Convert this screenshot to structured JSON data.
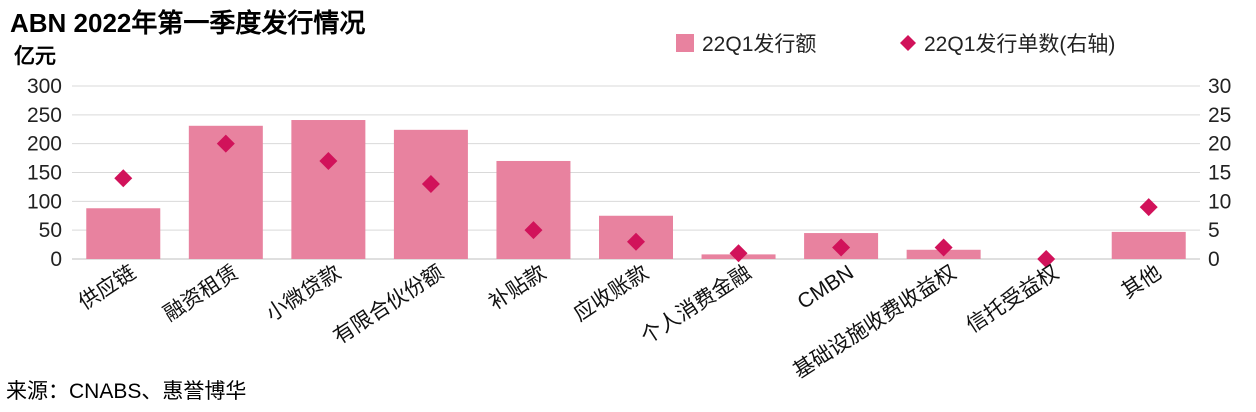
{
  "title": "ABN 2022年第一季度发行情况",
  "left_unit": "亿元",
  "source": "来源：CNABS、惠誉博华",
  "colors": {
    "bar": "#e8829f",
    "marker": "#d1125a",
    "grid": "#d9d9d9"
  },
  "chart_data": {
    "type": "bar",
    "title": "ABN 2022年第一季度发行情况",
    "ylabel": "亿元",
    "categories": [
      "供应链",
      "融资租赁",
      "小微贷款",
      "有限合伙份额",
      "补贴款",
      "应收账款",
      "个人消费金融",
      "CMBN",
      "基础设施收费收益权",
      "信托受益权",
      "其他"
    ],
    "ylim": [
      0,
      300
    ],
    "yticks": [
      0,
      50,
      100,
      150,
      200,
      250,
      300
    ],
    "y2lim": [
      0,
      30
    ],
    "y2ticks": [
      0,
      5,
      10,
      15,
      20,
      25,
      30
    ],
    "grid": true,
    "legend_position": "top-right",
    "series": [
      {
        "name": "22Q1发行额",
        "type": "bar",
        "axis": "left",
        "values": [
          88,
          231,
          241,
          224,
          170,
          75,
          8,
          45,
          16,
          0,
          47
        ]
      },
      {
        "name": "22Q1发行单数(右轴)",
        "type": "scatter",
        "marker": "diamond",
        "axis": "right",
        "values": [
          14,
          20,
          17,
          13,
          5,
          3,
          1,
          2,
          2,
          0,
          9
        ]
      }
    ]
  }
}
